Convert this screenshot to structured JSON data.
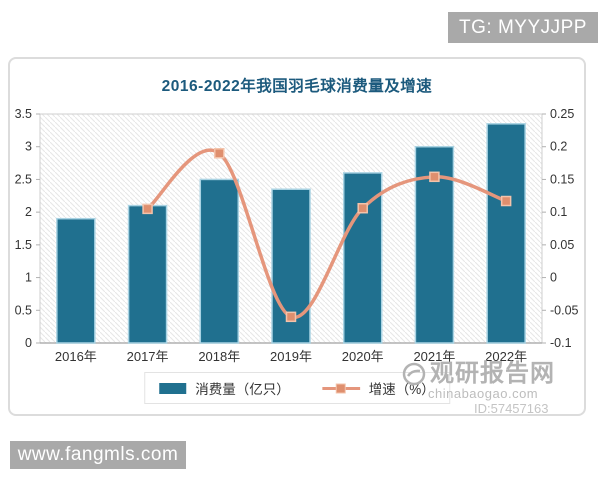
{
  "badges": {
    "tg": "TG: MYYJJPP",
    "site": "www.fangmls.com"
  },
  "watermark": {
    "name": "观研报告网",
    "domain": "chinabaogao.com",
    "id": "ID:57457163"
  },
  "colors": {
    "bar": "#20708f",
    "bar_edge": "#a9d3e3",
    "line": "#e5967c",
    "marker_fill": "#df8f6e",
    "marker_edge": "#f3c3ab",
    "title": "#1c5a7d",
    "axis_text": "#333333",
    "axis_line": "#b0b0b0",
    "plot_border": "#cfcfcf",
    "hatch": "#e7e7e7",
    "badge_bg": "#a9a9a9"
  },
  "chart_data": {
    "type": "bar",
    "title": "2016-2022年我国羽毛球消费量及增速",
    "categories": [
      "2016年",
      "2017年",
      "2018年",
      "2019年",
      "2020年",
      "2021年",
      "2022年"
    ],
    "series": [
      {
        "name": "消费量（亿只）",
        "type": "bar",
        "axis": "left",
        "values": [
          1.9,
          2.1,
          2.5,
          2.35,
          2.6,
          3.0,
          3.35
        ]
      },
      {
        "name": "增速（%）",
        "type": "line",
        "axis": "right",
        "values": [
          null,
          0.105,
          0.19,
          -0.06,
          0.106,
          0.154,
          0.117
        ]
      }
    ],
    "left_axis": {
      "min": 0,
      "max": 3.5,
      "step": 0.5
    },
    "right_axis": {
      "min": -0.1,
      "max": 0.25,
      "step": 0.05
    },
    "legend_position": "bottom",
    "grid": false
  }
}
